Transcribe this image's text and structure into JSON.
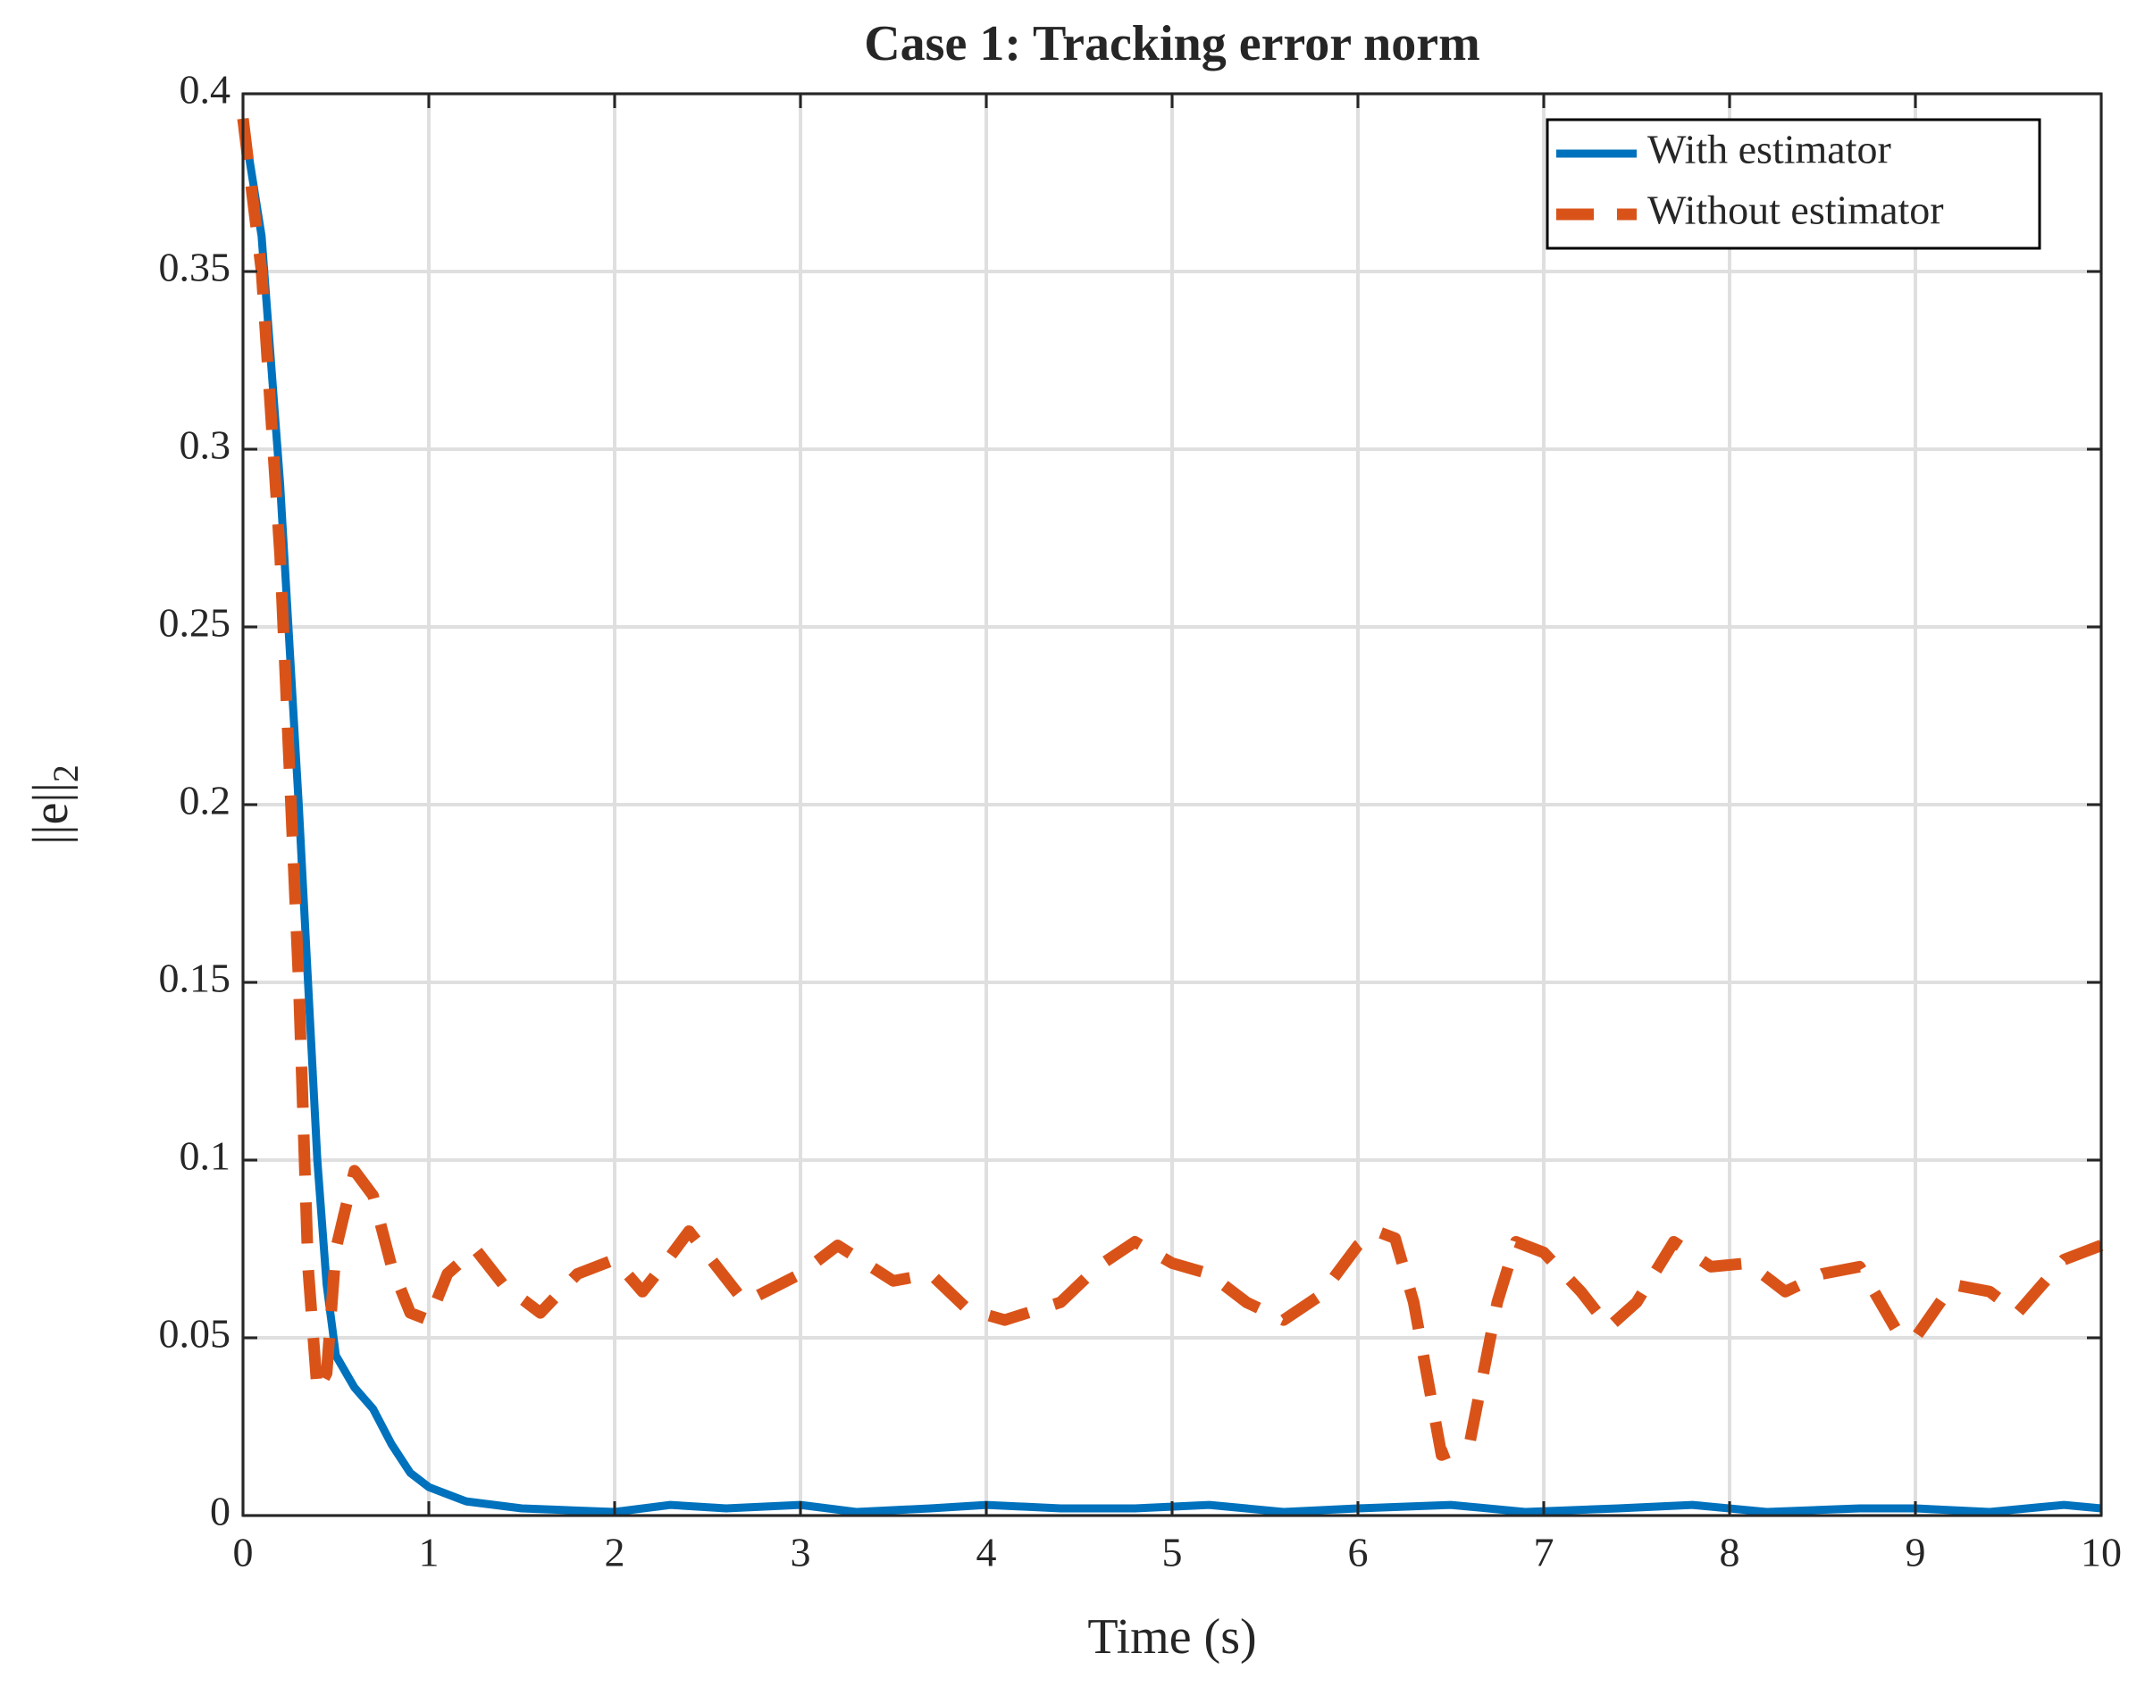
{
  "chart_data": {
    "type": "line",
    "title": "Case 1: Tracking error norm",
    "xlabel": "Time (s)",
    "ylabel": "||e||",
    "ylabel_subscript": "2",
    "xlim": [
      0,
      10
    ],
    "ylim": [
      0,
      0.4
    ],
    "xticks": [
      0,
      1,
      2,
      3,
      4,
      5,
      6,
      7,
      8,
      9,
      10
    ],
    "yticks": [
      0,
      0.05,
      0.1,
      0.15,
      0.2,
      0.25,
      0.3,
      0.35,
      0.4
    ],
    "grid": true,
    "legend": "upper right",
    "series": [
      {
        "name": "With estimator",
        "color": "#0072bd",
        "style": "solid",
        "x": [
          0,
          0.1,
          0.2,
          0.3,
          0.35,
          0.4,
          0.45,
          0.5,
          0.6,
          0.7,
          0.8,
          0.9,
          1.0,
          1.2,
          1.5,
          2.0,
          2.3,
          2.6,
          3.0,
          3.3,
          3.7,
          4.0,
          4.4,
          4.8,
          5.2,
          5.6,
          6.0,
          6.5,
          6.9,
          7.4,
          7.8,
          8.2,
          8.7,
          9.0,
          9.4,
          9.8,
          10
        ],
        "values": [
          0.393,
          0.36,
          0.29,
          0.2,
          0.15,
          0.1,
          0.065,
          0.045,
          0.036,
          0.03,
          0.02,
          0.012,
          0.008,
          0.004,
          0.002,
          0.001,
          0.003,
          0.002,
          0.003,
          0.001,
          0.002,
          0.003,
          0.002,
          0.002,
          0.003,
          0.001,
          0.002,
          0.003,
          0.001,
          0.002,
          0.003,
          0.001,
          0.002,
          0.002,
          0.001,
          0.003,
          0.002
        ]
      },
      {
        "name": "Without estimator",
        "color": "#d95319",
        "style": "dashed",
        "x": [
          0,
          0.1,
          0.2,
          0.3,
          0.35,
          0.4,
          0.45,
          0.5,
          0.6,
          0.7,
          0.8,
          0.9,
          1.0,
          1.1,
          1.25,
          1.4,
          1.6,
          1.8,
          2.0,
          2.15,
          2.3,
          2.4,
          2.55,
          2.7,
          3.0,
          3.2,
          3.5,
          3.7,
          3.9,
          4.1,
          4.4,
          4.6,
          4.8,
          5.0,
          5.2,
          5.4,
          5.6,
          5.8,
          6.0,
          6.1,
          6.2,
          6.3,
          6.45,
          6.6,
          6.75,
          6.85,
          7.0,
          7.2,
          7.35,
          7.5,
          7.7,
          7.9,
          8.1,
          8.3,
          8.5,
          8.7,
          8.9,
          9.0,
          9.2,
          9.4,
          9.55,
          9.8,
          10
        ],
        "values": [
          0.393,
          0.35,
          0.27,
          0.15,
          0.07,
          0.035,
          0.04,
          0.075,
          0.097,
          0.09,
          0.07,
          0.057,
          0.055,
          0.068,
          0.075,
          0.065,
          0.057,
          0.068,
          0.072,
          0.063,
          0.073,
          0.08,
          0.07,
          0.06,
          0.068,
          0.076,
          0.066,
          0.068,
          0.058,
          0.055,
          0.06,
          0.07,
          0.077,
          0.071,
          0.068,
          0.06,
          0.055,
          0.062,
          0.076,
          0.08,
          0.078,
          0.06,
          0.017,
          0.02,
          0.06,
          0.077,
          0.074,
          0.063,
          0.053,
          0.06,
          0.077,
          0.07,
          0.071,
          0.063,
          0.068,
          0.07,
          0.052,
          0.05,
          0.065,
          0.063,
          0.057,
          0.072,
          0.076
        ]
      }
    ]
  }
}
